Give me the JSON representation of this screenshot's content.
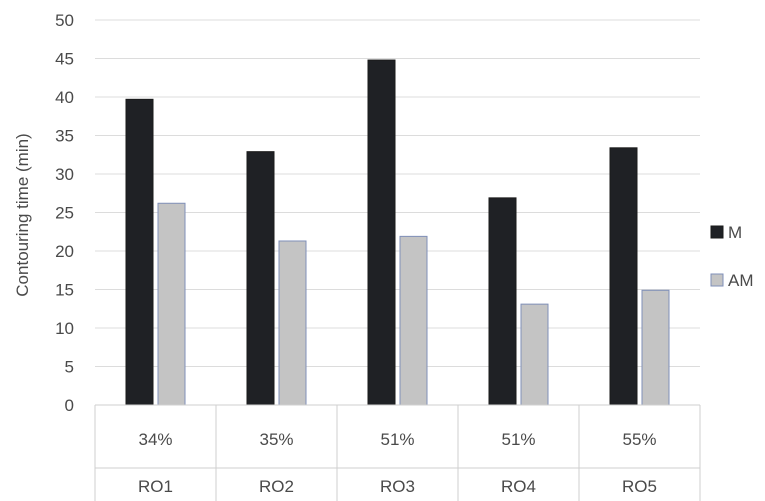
{
  "chart_data": {
    "type": "bar",
    "categories": [
      "RO1",
      "RO2",
      "RO3",
      "RO4",
      "RO5"
    ],
    "category_sublabels": [
      "34%",
      "35%",
      "51%",
      "51%",
      "55%"
    ],
    "series": [
      {
        "name": "M",
        "values": [
          39.7,
          32.9,
          44.8,
          26.9,
          33.4
        ],
        "color": "#1f2125"
      },
      {
        "name": "AM",
        "values": [
          26.2,
          21.3,
          21.9,
          13.1,
          14.9
        ],
        "color": "#c4c4c4"
      }
    ],
    "yticks": [
      "0",
      "5",
      "10",
      "15",
      "20",
      "25",
      "30",
      "35",
      "40",
      "45",
      "50"
    ],
    "ylabel": "Contouring time (min)",
    "xlabel": "",
    "title": "",
    "ylim": [
      0,
      50
    ],
    "grid": true,
    "legend_position": "right"
  }
}
